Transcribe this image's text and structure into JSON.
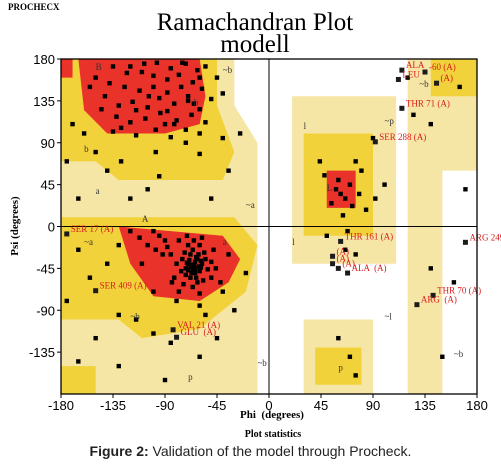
{
  "header": {
    "program": "PROCHECX",
    "title_line1": "Ramachandran Plot",
    "title_line2": "modell"
  },
  "caption": {
    "label": "Figure 2:",
    "text": " Validation of the model through Procheck."
  },
  "footer": {
    "plot_statistics": "Plot statistics"
  },
  "colors": {
    "core": "#e8322a",
    "allowed": "#f1d23a",
    "generous": "#f6e6a6",
    "disallowed": "#ffffff",
    "residue_label": "#d81b1b"
  },
  "chart_data": {
    "type": "scatter",
    "xlabel": "Phi  (degrees)",
    "ylabel": "Psi (degrees)",
    "xlim": [
      -180,
      180
    ],
    "ylim": [
      -180,
      180
    ],
    "x_ticks": [
      -180,
      -135,
      -90,
      -45,
      0,
      45,
      90,
      135,
      180
    ],
    "y_ticks": [
      180,
      135,
      90,
      45,
      0,
      -45,
      -90,
      -135
    ],
    "x_tick_labels": [
      "-180",
      "-135",
      "-90",
      "-45",
      "0",
      "45",
      "90",
      "135",
      "180"
    ],
    "y_tick_labels": [
      "180",
      "135",
      "90",
      "45",
      "0",
      "-45",
      "-90",
      "-135"
    ],
    "grid": "zero lines only",
    "region_letters": [
      "B",
      "b",
      "b",
      "A",
      "a",
      "a",
      "l",
      "L",
      "l",
      "p",
      "p",
      "~b",
      "~b",
      "~b",
      "~b",
      "~b",
      "~a",
      "~a",
      "~l",
      "~p"
    ],
    "labeled_residues": [
      {
        "label": "ALA",
        "phi": 115,
        "psi": 168
      },
      {
        "label": "LEU",
        "phi": 112,
        "psi": 158
      },
      {
        "label": "-60 (A)",
        "phi": 135,
        "psi": 166
      },
      {
        "label": "(A)",
        "phi": 145,
        "psi": 154
      },
      {
        "label": "THR 71 (A)",
        "phi": 115,
        "psi": 127
      },
      {
        "label": "SER 288 (A)",
        "phi": 92,
        "psi": 91
      },
      {
        "label": "SER 17 (A)",
        "phi": -175,
        "psi": -8
      },
      {
        "label": "THR 161 (A)",
        "phi": 62,
        "psi": -16
      },
      {
        "label": "ARG 249 (A)",
        "phi": 170,
        "psi": -17
      },
      {
        "label": "(A)",
        "phi": 55,
        "psi": -32
      },
      {
        "label": "(A)",
        "phi": 55,
        "psi": -40
      },
      {
        "label": "(A)",
        "phi": 60,
        "psi": -45
      },
      {
        "label": "ALA  (A)",
        "phi": 68,
        "psi": -50
      },
      {
        "label": "SER 409 (A)",
        "phi": -150,
        "psi": -69
      },
      {
        "label": "THR 70 (A)",
        "phi": 142,
        "psi": -74
      },
      {
        "label": "ARG  (A)",
        "phi": 128,
        "psi": -84
      },
      {
        "label": "VAL 21 (A)",
        "phi": -83,
        "psi": -111
      },
      {
        "label": "GLU  (A)",
        "phi": -80,
        "psi": -119
      }
    ],
    "points": [
      [
        -120,
        172
      ],
      [
        -110,
        166
      ],
      [
        -97,
        176
      ],
      [
        -85,
        170
      ],
      [
        -72,
        175
      ],
      [
        -62,
        168
      ],
      [
        -55,
        172
      ],
      [
        -150,
        160
      ],
      [
        -138,
        154
      ],
      [
        -125,
        150
      ],
      [
        -112,
        146
      ],
      [
        -100,
        150
      ],
      [
        -88,
        158
      ],
      [
        -76,
        150
      ],
      [
        -66,
        155
      ],
      [
        -58,
        148
      ],
      [
        -45,
        160
      ],
      [
        -142,
        140
      ],
      [
        -130,
        130
      ],
      [
        -118,
        134
      ],
      [
        -105,
        128
      ],
      [
        -95,
        138
      ],
      [
        -82,
        132
      ],
      [
        -70,
        140
      ],
      [
        -60,
        126
      ],
      [
        -50,
        137
      ],
      [
        -132,
        118
      ],
      [
        -120,
        112
      ],
      [
        -107,
        116
      ],
      [
        -94,
        122
      ],
      [
        -80,
        114
      ],
      [
        -67,
        120
      ],
      [
        -55,
        112
      ],
      [
        -135,
        102
      ],
      [
        -115,
        98
      ],
      [
        -98,
        104
      ],
      [
        -85,
        96
      ],
      [
        -72,
        104
      ],
      [
        -123,
        165
      ],
      [
        -100,
        162
      ],
      [
        -78,
        163
      ],
      [
        -135,
        172
      ],
      [
        -108,
        175
      ],
      [
        -88,
        144
      ],
      [
        -65,
        132
      ],
      [
        -145,
        126
      ],
      [
        -40,
        143
      ],
      [
        -115,
        125
      ],
      [
        -90,
        110
      ],
      [
        -128,
        106
      ],
      [
        -155,
        150
      ],
      [
        -75,
        176
      ],
      [
        -60,
        160
      ],
      [
        -104,
        140
      ],
      [
        -88,
        124
      ],
      [
        -72,
        90
      ],
      [
        -40,
        95
      ],
      [
        -160,
        100
      ],
      [
        -150,
        80
      ],
      [
        -128,
        70
      ],
      [
        -98,
        80
      ],
      [
        -60,
        78
      ],
      [
        -140,
        60
      ],
      [
        -95,
        54
      ],
      [
        -120,
        30
      ],
      [
        -105,
        40
      ],
      [
        -82,
        110
      ],
      [
        -60,
        100
      ],
      [
        -70,
        -40
      ],
      [
        -65,
        -42
      ],
      [
        -62,
        -35
      ],
      [
        -68,
        -30
      ],
      [
        -72,
        -45
      ],
      [
        -60,
        -48
      ],
      [
        -58,
        -40
      ],
      [
        -66,
        -25
      ],
      [
        -75,
        -35
      ],
      [
        -63,
        -55
      ],
      [
        -55,
        -35
      ],
      [
        -70,
        -20
      ],
      [
        -80,
        -40
      ],
      [
        -64,
        -46
      ],
      [
        -61,
        -30
      ],
      [
        -67,
        -50
      ],
      [
        -73,
        -28
      ],
      [
        -59,
        -44
      ],
      [
        -76,
        -48
      ],
      [
        -69,
        -36
      ],
      [
        -62,
        -60
      ],
      [
        -85,
        -30
      ],
      [
        -90,
        -15
      ],
      [
        -95,
        -10
      ],
      [
        -100,
        -5
      ],
      [
        -88,
        -22
      ],
      [
        -78,
        -15
      ],
      [
        -82,
        -55
      ],
      [
        -74,
        -62
      ],
      [
        -66,
        -65
      ],
      [
        -57,
        -58
      ],
      [
        -53,
        -46
      ],
      [
        -50,
        -38
      ],
      [
        -56,
        -28
      ],
      [
        -71,
        -10
      ],
      [
        -65,
        -15
      ],
      [
        -60,
        -20
      ],
      [
        -58,
        -12
      ],
      [
        -68,
        -55
      ],
      [
        -72,
        -52
      ],
      [
        -64,
        -38
      ],
      [
        -61,
        -43
      ],
      [
        -67,
        -41
      ],
      [
        -70,
        -47
      ],
      [
        -63,
        -33
      ],
      [
        -59,
        -37
      ],
      [
        -66,
        -46
      ],
      [
        -71,
        -39
      ],
      [
        -68,
        -44
      ],
      [
        -64,
        -50
      ],
      [
        -92,
        -30
      ],
      [
        -98,
        -25
      ],
      [
        -105,
        -20
      ],
      [
        -112,
        -12
      ],
      [
        -84,
        -60
      ],
      [
        -78,
        -70
      ],
      [
        -60,
        -72
      ],
      [
        -50,
        -55
      ],
      [
        -46,
        -45
      ],
      [
        -48,
        -25
      ],
      [
        -120,
        -5
      ],
      [
        -130,
        -20
      ],
      [
        -110,
        -40
      ],
      [
        -42,
        -60
      ],
      [
        -80,
        -80
      ],
      [
        -100,
        -70
      ],
      [
        -60,
        -85
      ],
      [
        -55,
        -95
      ],
      [
        -40,
        -70
      ],
      [
        -35,
        -30
      ],
      [
        -140,
        -40
      ],
      [
        -155,
        -55
      ],
      [
        -165,
        -25
      ],
      [
        -115,
        -100
      ],
      [
        -100,
        -115
      ],
      [
        -85,
        -125
      ],
      [
        -150,
        -120
      ],
      [
        -165,
        -145
      ],
      [
        -130,
        -150
      ],
      [
        -90,
        -165
      ],
      [
        -60,
        -140
      ],
      [
        -45,
        -120
      ],
      [
        -30,
        -90
      ],
      [
        -20,
        -50
      ],
      [
        -170,
        110
      ],
      [
        -175,
        70
      ],
      [
        -165,
        30
      ],
      [
        -50,
        30
      ],
      [
        -35,
        60
      ],
      [
        -25,
        100
      ],
      [
        58,
        40
      ],
      [
        62,
        35
      ],
      [
        66,
        30
      ],
      [
        54,
        25
      ],
      [
        70,
        45
      ],
      [
        72,
        22
      ],
      [
        60,
        50
      ],
      [
        64,
        12
      ],
      [
        48,
        55
      ],
      [
        78,
        35
      ],
      [
        84,
        18
      ],
      [
        80,
        60
      ],
      [
        75,
        70
      ],
      [
        44,
        70
      ],
      [
        90,
        95
      ],
      [
        92,
        30
      ],
      [
        100,
        45
      ],
      [
        68,
        -5
      ],
      [
        50,
        -10
      ],
      [
        66,
        -25
      ],
      [
        75,
        -30
      ],
      [
        140,
        -45
      ],
      [
        160,
        -60
      ],
      [
        75,
        -160
      ],
      [
        70,
        -140
      ],
      [
        60,
        -120
      ],
      [
        150,
        -140
      ],
      [
        165,
        150
      ],
      [
        140,
        110
      ],
      [
        170,
        40
      ],
      [
        125,
        120
      ],
      [
        120,
        160
      ],
      [
        -70,
        135
      ],
      [
        -130,
        -95
      ],
      [
        -175,
        -80
      ]
    ]
  }
}
